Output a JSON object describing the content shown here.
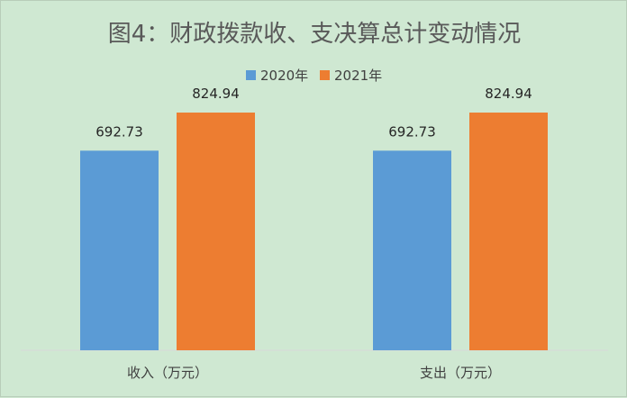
{
  "chart_data": {
    "type": "bar",
    "title": "图4：财政拨款收、支决算总计变动情况",
    "categories": [
      "收入（万元）",
      "支出（万元）"
    ],
    "series": [
      {
        "name": "2020年",
        "values": [
          692.73,
          692.73
        ],
        "color": "#5b9bd5"
      },
      {
        "name": "2021年",
        "values": [
          824.94,
          824.94
        ],
        "color": "#ed7d31"
      }
    ],
    "ylim": [
      0,
      900
    ],
    "grid": false,
    "legend_position": "top"
  }
}
